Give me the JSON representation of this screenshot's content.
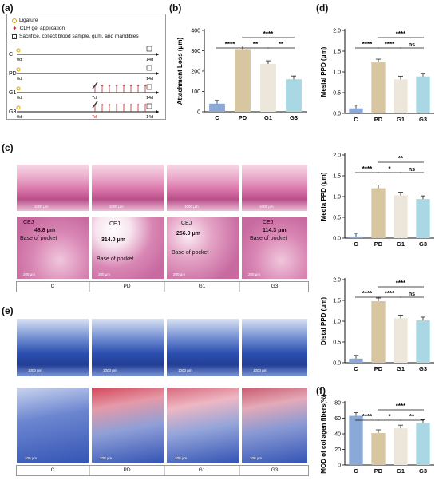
{
  "panels": {
    "a": "(a)",
    "b": "(b)",
    "c": "(c)",
    "d": "(d)",
    "e": "(e)",
    "f": "(f)"
  },
  "timeline": {
    "legend": {
      "ligature": "Ligature",
      "clh": "CLH gel application",
      "sacrifice": "Sacrifice, collect blood sample, gum, and mandibles"
    },
    "rows": [
      {
        "group": "C",
        "start": "0d",
        "end": "14d",
        "mid": ""
      },
      {
        "group": "PD",
        "start": "0d",
        "end": "14d",
        "mid": ""
      },
      {
        "group": "G1",
        "start": "0d",
        "end": "14d",
        "mid": "7d"
      },
      {
        "group": "G3",
        "start": "0d",
        "end": "14d",
        "mid": "7d"
      }
    ]
  },
  "histology_c": {
    "groups": [
      "C",
      "PD",
      "G1",
      "G3"
    ],
    "scale_top": "1000 μm",
    "scale_bottom": "200 μm",
    "cej": "CEJ",
    "base": "Base of pocket",
    "measurements": [
      "48.8 μm",
      "314.0 μm",
      "256.9 μm",
      "114.3 μm"
    ]
  },
  "histology_e": {
    "groups": [
      "C",
      "PD",
      "G1",
      "G3"
    ],
    "scale_top": "1000 μm",
    "scale_bottom": "100 μm"
  },
  "colors": {
    "C": "#8aa9d6",
    "PD": "#d8c6a0",
    "G1": "#ede7db",
    "G3": "#a9d8e4"
  },
  "chart_data": [
    {
      "id": "b",
      "type": "bar",
      "categories": [
        "C",
        "PD",
        "G1",
        "G3"
      ],
      "values": [
        40,
        308,
        235,
        160
      ],
      "ylabel": "Attachment Loss (μm)",
      "ylim": [
        0,
        400
      ],
      "yticks": [
        0,
        100,
        200,
        300,
        400
      ],
      "sig": [
        {
          "from": 0,
          "to": 1,
          "label": "****"
        },
        {
          "from": 1,
          "to": 2,
          "label": "**"
        },
        {
          "from": 2,
          "to": 3,
          "label": "**"
        },
        {
          "from": 1,
          "to": 3,
          "label": "****"
        }
      ]
    },
    {
      "id": "d1",
      "type": "bar",
      "categories": [
        "C",
        "PD",
        "G1",
        "G3"
      ],
      "values": [
        0.12,
        1.23,
        0.82,
        0.89
      ],
      "ylabel": "Mesial PPD (μm)",
      "ylim": [
        0,
        2.0
      ],
      "yticks": [
        "0.0",
        "0.5",
        "1.0",
        "1.5",
        "2.0"
      ],
      "sig": [
        {
          "from": 0,
          "to": 1,
          "label": "****"
        },
        {
          "from": 1,
          "to": 2,
          "label": "****"
        },
        {
          "from": 2,
          "to": 3,
          "label": "ns"
        },
        {
          "from": 1,
          "to": 3,
          "label": "****"
        }
      ]
    },
    {
      "id": "d2",
      "type": "bar",
      "categories": [
        "C",
        "PD",
        "G1",
        "G3"
      ],
      "values": [
        0.04,
        1.2,
        1.03,
        0.94
      ],
      "ylabel": "Media PPD (μm)",
      "ylim": [
        0,
        2.0
      ],
      "yticks": [
        "0.0",
        "0.5",
        "1.0",
        "1.5",
        "2.0"
      ],
      "sig": [
        {
          "from": 0,
          "to": 1,
          "label": "****"
        },
        {
          "from": 1,
          "to": 2,
          "label": "*"
        },
        {
          "from": 2,
          "to": 3,
          "label": "ns"
        },
        {
          "from": 1,
          "to": 3,
          "label": "**"
        }
      ]
    },
    {
      "id": "d3",
      "type": "bar",
      "categories": [
        "C",
        "PD",
        "G1",
        "G3"
      ],
      "values": [
        0.1,
        1.48,
        1.07,
        1.02
      ],
      "ylabel": "Distal PPD (μm)",
      "ylim": [
        0,
        2.0
      ],
      "yticks": [
        "0.0",
        "0.5",
        "1.0",
        "1.5",
        "2.0"
      ],
      "sig": [
        {
          "from": 0,
          "to": 1,
          "label": "****"
        },
        {
          "from": 1,
          "to": 2,
          "label": "****"
        },
        {
          "from": 2,
          "to": 3,
          "label": "ns"
        },
        {
          "from": 1,
          "to": 3,
          "label": "****"
        }
      ]
    },
    {
      "id": "f",
      "type": "bar",
      "categories": [
        "C",
        "PD",
        "G1",
        "G3"
      ],
      "values": [
        63,
        41,
        47,
        54
      ],
      "ylabel": "MOD of collagen fibers(%)",
      "ylim": [
        0,
        80
      ],
      "yticks": [
        0,
        20,
        40,
        60,
        80
      ],
      "sig": [
        {
          "from": 0,
          "to": 1,
          "label": "****"
        },
        {
          "from": 1,
          "to": 2,
          "label": "*"
        },
        {
          "from": 2,
          "to": 3,
          "label": "**"
        },
        {
          "from": 1,
          "to": 3,
          "label": "****"
        }
      ]
    }
  ]
}
